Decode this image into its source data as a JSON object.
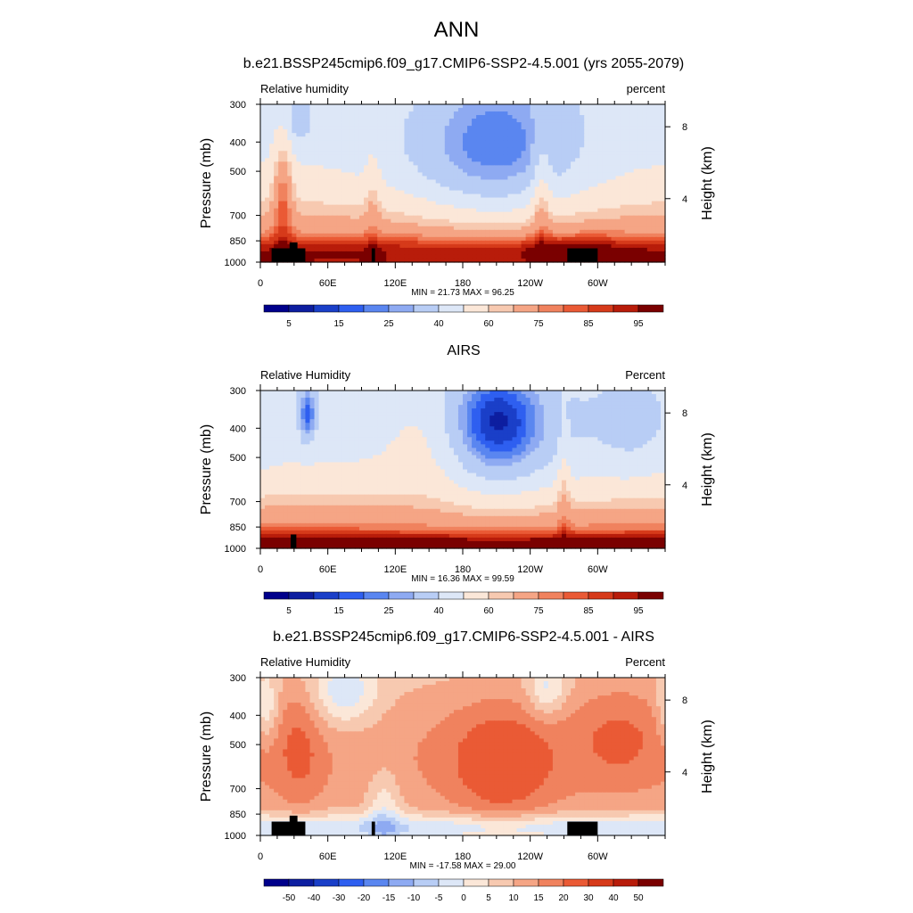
{
  "title": "ANN",
  "colors": {
    "abs_levels": [
      "#00008b",
      "#0d1ea0",
      "#1a3fc8",
      "#2e5ff0",
      "#5a86f0",
      "#8eaaf2",
      "#b8cdf5",
      "#dde7f7",
      "#fbe7d8",
      "#f7c9b0",
      "#f5a585",
      "#f0825e",
      "#ea5a35",
      "#d63a1a",
      "#b81c0a",
      "#7a0000"
    ],
    "diff_levels": [
      "#00008b",
      "#0d1ea0",
      "#1a3fc8",
      "#2e5ff0",
      "#5a86f0",
      "#8eaaf2",
      "#b8cdf5",
      "#dde7f7",
      "#fbe7d8",
      "#f7c9b0",
      "#f5a585",
      "#f0825e",
      "#ea5a35",
      "#d63a1a",
      "#b81c0a",
      "#7a0000"
    ],
    "terrain": "#000000"
  },
  "chart_data": [
    {
      "type": "heatmap",
      "title": "b.e21.BSSP245cmip6.f09_g17.CMIP6-SSP2-4.5.001 (yrs 2055-2079)",
      "left_label": "Relative humidity",
      "right_label": "percent",
      "ylabel": "Pressure (mb)",
      "ylabel_right": "Height (km)",
      "yticks": [
        "300",
        "400",
        "500",
        "700",
        "850",
        "1000"
      ],
      "yticks_right": [
        "8",
        "4"
      ],
      "xticks": [
        "0",
        "60E",
        "120E",
        "180",
        "120W",
        "60W"
      ],
      "stats": "MIN =  21.73  MAX =  96.25",
      "ylim": [
        1000,
        300
      ],
      "colorbar_labels": [
        "5",
        "15",
        "25",
        "40",
        "60",
        "75",
        "85",
        "95"
      ],
      "kind": "model"
    },
    {
      "type": "heatmap",
      "title": "AIRS",
      "left_label": "Relative Humidity",
      "right_label": "Percent",
      "ylabel": "Pressure (mb)",
      "ylabel_right": "Height (km)",
      "yticks": [
        "300",
        "400",
        "500",
        "700",
        "850",
        "1000"
      ],
      "yticks_right": [
        "8",
        "4"
      ],
      "xticks": [
        "0",
        "60E",
        "120E",
        "180",
        "120W",
        "60W"
      ],
      "stats": "MIN =  16.36  MAX =  99.59",
      "ylim": [
        1000,
        300
      ],
      "colorbar_labels": [
        "5",
        "15",
        "25",
        "40",
        "60",
        "75",
        "85",
        "95"
      ],
      "kind": "obs"
    },
    {
      "type": "heatmap",
      "title": "b.e21.BSSP245cmip6.f09_g17.CMIP6-SSP2-4.5.001 - AIRS",
      "left_label": "Relative Humidity",
      "right_label": "Percent",
      "ylabel": "Pressure (mb)",
      "ylabel_right": "Height (km)",
      "yticks": [
        "300",
        "400",
        "500",
        "700",
        "850",
        "1000"
      ],
      "yticks_right": [
        "8",
        "4"
      ],
      "xticks": [
        "0",
        "60E",
        "120E",
        "180",
        "120W",
        "60W"
      ],
      "stats": "MIN = -17.58  MAX =  29.00",
      "ylim": [
        1000,
        300
      ],
      "colorbar_labels": [
        "-50",
        "-40",
        "-30",
        "-20",
        "-15",
        "-10",
        "-5",
        "0",
        "5",
        "10",
        "15",
        "20",
        "30",
        "40",
        "50"
      ],
      "kind": "diff"
    }
  ]
}
